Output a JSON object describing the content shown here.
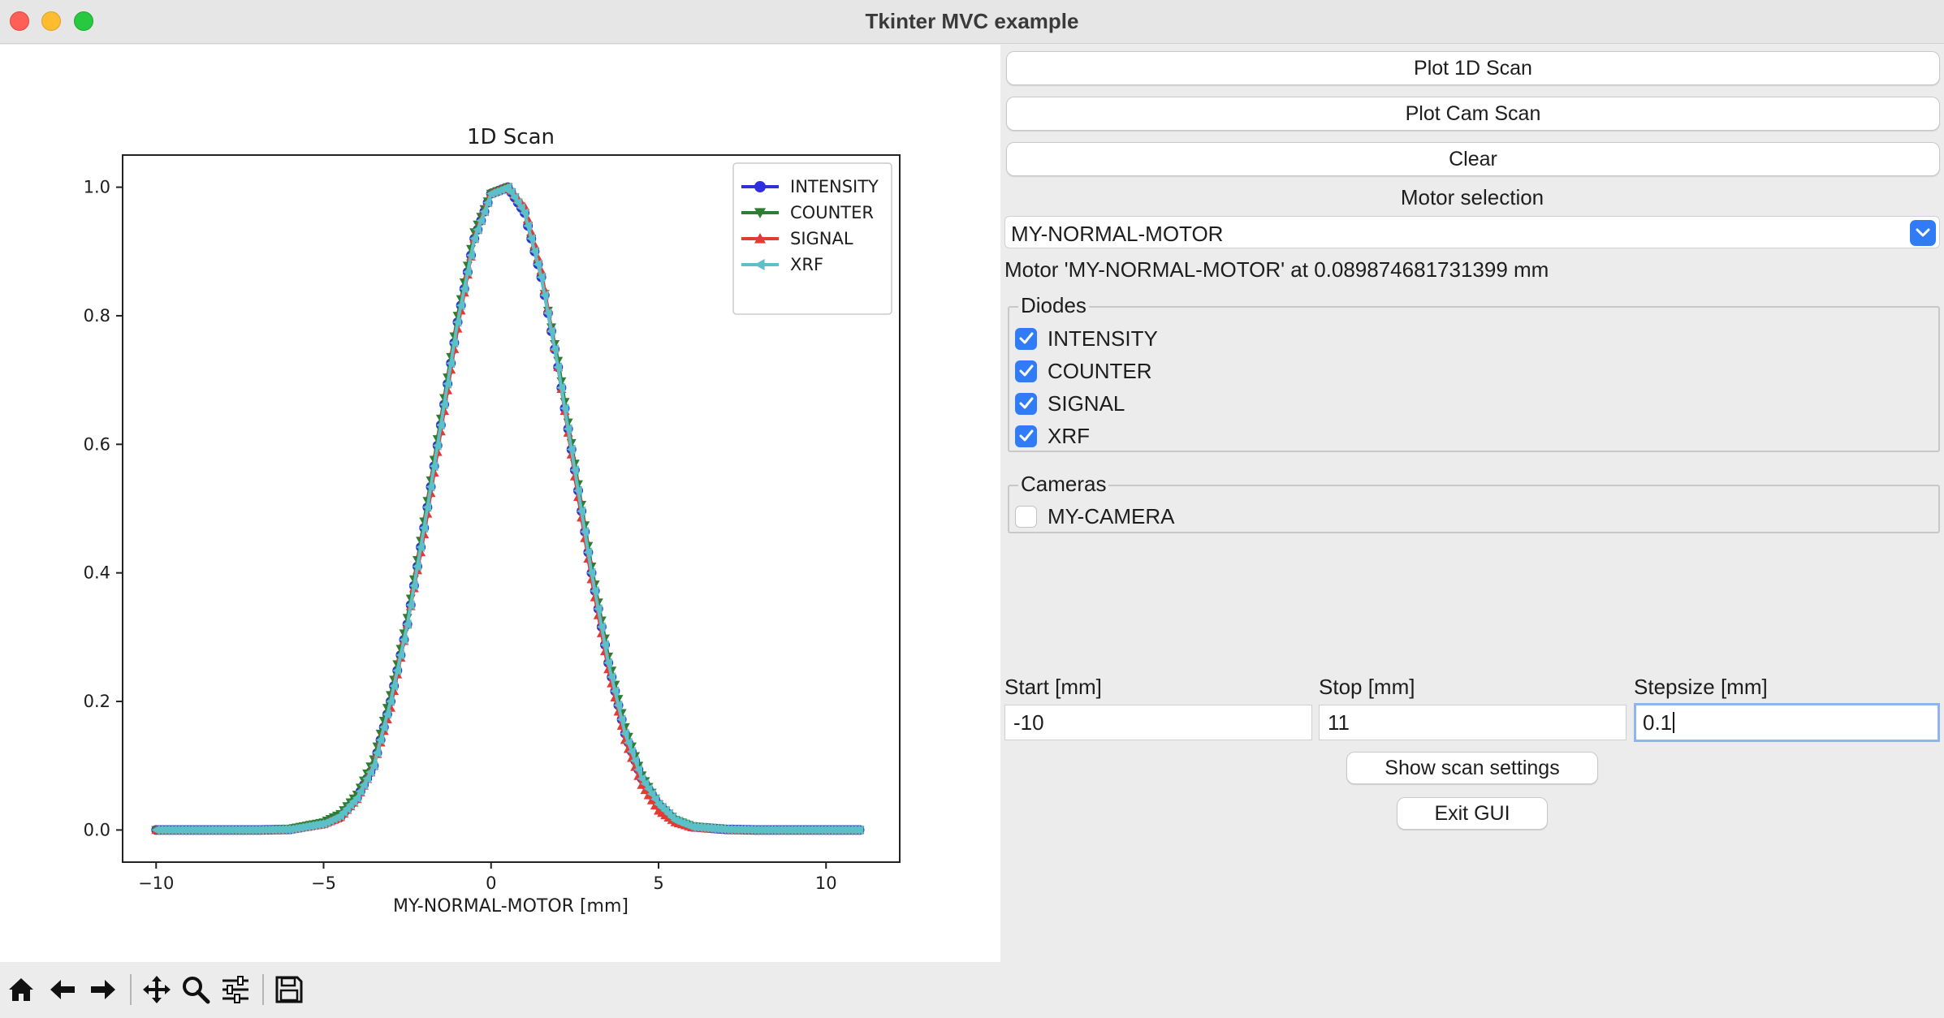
{
  "window": {
    "title": "Tkinter MVC example"
  },
  "toolbar": {
    "items": [
      "home-icon",
      "back-icon",
      "forward-icon",
      "pan-icon",
      "zoom-icon",
      "configure-subplots-icon",
      "save-icon"
    ]
  },
  "panel": {
    "plot_1d_label": "Plot 1D Scan",
    "plot_cam_label": "Plot Cam Scan",
    "clear_label": "Clear",
    "motor_selection_label": "Motor selection",
    "motor_selected": "MY-NORMAL-MOTOR",
    "motor_status": "Motor 'MY-NORMAL-MOTOR' at 0.089874681731399 mm",
    "diodes_title": "Diodes",
    "diodes": [
      {
        "label": "INTENSITY",
        "checked": true
      },
      {
        "label": "COUNTER",
        "checked": true
      },
      {
        "label": "SIGNAL",
        "checked": true
      },
      {
        "label": "XRF",
        "checked": true
      }
    ],
    "cameras_title": "Cameras",
    "cameras": [
      {
        "label": "MY-CAMERA",
        "checked": false
      }
    ],
    "start_label": "Start [mm]",
    "stop_label": "Stop [mm]",
    "stepsize_label": "Stepsize [mm]",
    "start_value": "-10",
    "stop_value": "11",
    "stepsize_value": "0.1",
    "show_settings_label": "Show scan settings",
    "exit_label": "Exit GUI"
  },
  "chart_data": {
    "type": "line",
    "title": "1D Scan",
    "xlabel": "MY-NORMAL-MOTOR [mm]",
    "ylabel": "",
    "xlim": [
      -11,
      12.2
    ],
    "ylim": [
      -0.05,
      1.05
    ],
    "xticks": [
      -10,
      -5,
      0,
      5,
      10
    ],
    "xtick_labels": [
      "−10",
      "−5",
      "0",
      "5",
      "10"
    ],
    "yticks": [
      0.0,
      0.2,
      0.4,
      0.6,
      0.8,
      1.0
    ],
    "ytick_labels": [
      "0.0",
      "0.2",
      "0.4",
      "0.6",
      "0.8",
      "1.0"
    ],
    "legend_position": "top-right",
    "grid": false,
    "x": [
      -10,
      -9,
      -8,
      -7,
      -6,
      -5,
      -4.5,
      -4,
      -3.5,
      -3,
      -2.5,
      -2,
      -1.5,
      -1,
      -0.5,
      0,
      0.5,
      1,
      1.5,
      2,
      2.5,
      3,
      3.5,
      4,
      4.5,
      5,
      5.5,
      6,
      7,
      8,
      9,
      10,
      11
    ],
    "series": [
      {
        "name": "INTENSITY",
        "color": "#2f2fe0",
        "marker": "circle",
        "values": [
          0,
          0,
          0,
          0,
          0.001,
          0.01,
          0.02,
          0.05,
          0.1,
          0.2,
          0.32,
          0.47,
          0.63,
          0.79,
          0.92,
          0.99,
          1.0,
          0.96,
          0.86,
          0.72,
          0.56,
          0.4,
          0.26,
          0.15,
          0.08,
          0.04,
          0.015,
          0.005,
          0.001,
          0,
          0,
          0,
          0
        ]
      },
      {
        "name": "COUNTER",
        "color": "#2e7d32",
        "marker": "triangle-down",
        "values": [
          0,
          0,
          0,
          0,
          0.002,
          0.012,
          0.025,
          0.055,
          0.11,
          0.21,
          0.33,
          0.48,
          0.64,
          0.8,
          0.93,
          0.99,
          1.0,
          0.96,
          0.86,
          0.73,
          0.57,
          0.41,
          0.27,
          0.16,
          0.085,
          0.04,
          0.016,
          0.006,
          0.001,
          0,
          0,
          0,
          0
        ]
      },
      {
        "name": "SIGNAL",
        "color": "#e53935",
        "marker": "triangle-up",
        "values": [
          0,
          0,
          0,
          0,
          0.001,
          0.009,
          0.02,
          0.048,
          0.1,
          0.19,
          0.32,
          0.46,
          0.62,
          0.78,
          0.92,
          0.99,
          1.0,
          0.97,
          0.87,
          0.72,
          0.55,
          0.39,
          0.25,
          0.14,
          0.07,
          0.03,
          0.012,
          0.004,
          0.001,
          0,
          0,
          0,
          0
        ]
      },
      {
        "name": "XRF",
        "color": "#5bc0c8",
        "marker": "triangle-left",
        "values": [
          0,
          0,
          0,
          0,
          0.001,
          0.01,
          0.022,
          0.05,
          0.1,
          0.2,
          0.32,
          0.47,
          0.63,
          0.79,
          0.92,
          0.99,
          1.0,
          0.96,
          0.86,
          0.72,
          0.56,
          0.4,
          0.26,
          0.15,
          0.08,
          0.04,
          0.015,
          0.005,
          0.001,
          0,
          0,
          0,
          0
        ]
      }
    ]
  }
}
